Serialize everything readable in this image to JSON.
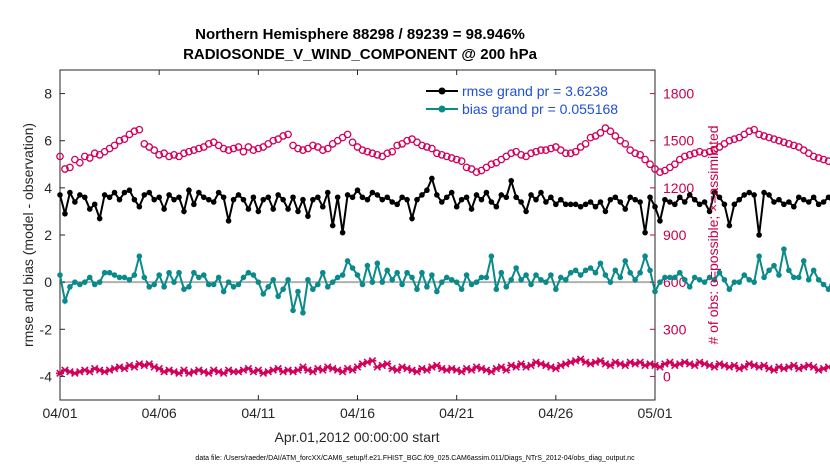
{
  "chart_data": {
    "type": "line",
    "title_line1": "Northern Hemisphere 88298 / 89239 = 98.946%",
    "title_line2": "RADIOSONDE_V_WIND_COMPONENT @ 200 hPa",
    "ylabel_left": "rmse and bias (model - observation)",
    "ylabel_right": "# of obs: o=possible; ×=assimilated",
    "xlabel": "Apr.01,2012 00:00:00 start",
    "footer": "data file: /Users/raeder/DAI/ATM_forcXX/CAM6_setup/f.e21.FHIST_BGC.f09_025.CAM6assim.011/Diags_NTrS_2012-04/obs_diag_output.nc",
    "ylim_left": [
      -5,
      9
    ],
    "ylim_right": [
      -150,
      1950
    ],
    "xlim": [
      0,
      30
    ],
    "yticks_left": [
      -4,
      -2,
      0,
      2,
      4,
      6,
      8
    ],
    "ytick_labels_left": [
      "-4",
      "-2",
      "0",
      "2",
      "4",
      "6",
      "8"
    ],
    "yticks_right": [
      0,
      300,
      600,
      900,
      1200,
      1500,
      1800
    ],
    "ytick_labels_right": [
      "0",
      "300",
      "600",
      "900",
      "1200",
      "1500",
      "1800"
    ],
    "xticks": [
      0,
      5,
      10,
      15,
      20,
      25,
      30
    ],
    "xtick_labels": [
      "04/01",
      "04/06",
      "04/11",
      "04/16",
      "04/21",
      "04/26",
      "05/01"
    ],
    "legend": [
      {
        "name": "rmse grand pr = 3.6238",
        "color": "#000000"
      },
      {
        "name": "bias grand pr = 0.055168",
        "color": "#008080"
      }
    ],
    "colors": {
      "rmse": "#000000",
      "bias": "#0a8a8a",
      "obs": "#d2005a",
      "zero_line": "#b0b0b0"
    },
    "x_step_days": 0.25,
    "series": [
      {
        "name": "rmse",
        "axis": "left",
        "values": [
          3.7,
          2.9,
          3.8,
          3.4,
          3.7,
          3.6,
          3.1,
          3.3,
          2.7,
          3.7,
          3.6,
          3.8,
          3.5,
          3.8,
          3.9,
          3.5,
          3.2,
          3.7,
          3.8,
          3.5,
          3.6,
          3.1,
          3.7,
          3.5,
          3.6,
          3.0,
          3.9,
          3.3,
          3.8,
          3.6,
          3.5,
          3.4,
          3.8,
          3.6,
          2.6,
          3.5,
          3.7,
          3.5,
          3.1,
          3.6,
          3.0,
          3.5,
          3.6,
          3.1,
          3.7,
          3.5,
          3.1,
          3.6,
          3.0,
          3.5,
          2.8,
          3.5,
          3.6,
          3.2,
          3.8,
          2.4,
          3.6,
          2.1,
          3.7,
          3.6,
          3.9,
          3.6,
          3.5,
          3.8,
          3.7,
          3.5,
          3.6,
          3.4,
          3.3,
          3.6,
          3.5,
          2.7,
          3.5,
          3.7,
          3.9,
          4.4,
          3.7,
          3.4,
          3.6,
          3.8,
          3.2,
          3.5,
          3.6,
          3.1,
          3.7,
          3.5,
          3.8,
          3.4,
          3.2,
          3.7,
          3.6,
          4.3,
          3.6,
          3.4,
          3.0,
          3.7,
          3.5,
          3.8,
          3.4,
          3.6,
          3.3,
          3.5,
          3.3,
          3.3,
          3.3,
          3.2,
          3.3,
          3.4,
          3.2,
          3.4,
          3.0,
          3.5,
          3.6,
          3.4,
          3.1,
          3.6,
          3.5,
          3.4,
          2.1,
          3.6,
          3.2,
          2.6,
          3.5,
          3.4,
          3.3,
          3.6,
          3.4,
          3.7,
          3.5,
          3.3,
          3.4,
          3.0,
          3.8,
          3.6,
          3.3,
          2.4,
          3.3,
          3.5,
          3.7,
          3.8,
          3.7,
          2.0,
          3.8,
          3.7,
          3.4,
          3.5,
          3.3,
          3.4,
          3.2,
          3.6,
          3.5,
          3.4,
          3.6,
          3.3,
          3.4,
          3.6,
          3.3,
          3.8,
          3.5,
          3.6,
          5.1,
          3.6,
          3.7,
          3.6,
          3.9,
          3.8,
          3.9,
          4.0,
          3.9,
          3.8,
          3.5,
          3.7,
          3.9,
          3.6,
          3.9,
          4.0,
          4.1,
          3.9,
          4.0,
          3.9,
          4.0,
          3.8,
          2.9,
          4.0,
          3.7
        ]
      },
      {
        "name": "bias",
        "axis": "left",
        "values": [
          0.3,
          -0.8,
          -0.2,
          0.0,
          -0.1,
          0.0,
          0.2,
          -0.1,
          0.0,
          0.4,
          0.4,
          0.3,
          0.2,
          0.2,
          0.1,
          0.3,
          1.1,
          0.2,
          -0.2,
          -0.1,
          0.3,
          -0.2,
          0.4,
          0.0,
          0.4,
          -0.3,
          -0.2,
          0.4,
          0.2,
          0.3,
          -0.1,
          -0.1,
          0.2,
          -0.4,
          0.0,
          -0.2,
          -0.1,
          0.2,
          0.4,
          0.3,
          0.0,
          -0.5,
          -0.2,
          0.1,
          -0.6,
          -0.3,
          0.1,
          -1.2,
          -0.4,
          -1.3,
          0.1,
          -0.3,
          -0.1,
          0.4,
          -0.2,
          0.0,
          0.2,
          0.3,
          0.9,
          0.6,
          0.3,
          -0.1,
          0.7,
          0.0,
          0.8,
          0.0,
          0.5,
          0.1,
          0.4,
          -0.1,
          0.4,
          0.2,
          -0.3,
          0.4,
          -0.2,
          0.3,
          -0.4,
          0.0,
          0.2,
          0.1,
          0.0,
          -0.3,
          0.3,
          -0.1,
          0.0,
          0.2,
          0.2,
          1.1,
          -0.3,
          0.4,
          -0.2,
          0.1,
          0.6,
          0.1,
          0.3,
          -0.1,
          0.3,
          0.1,
          0.0,
          0.3,
          -0.3,
          0.2,
          0.1,
          0.4,
          0.5,
          0.3,
          0.5,
          0.6,
          0.4,
          0.8,
          0.3,
          0.0,
          0.5,
          0.2,
          0.9,
          0.4,
          0.1,
          0.4,
          1.1,
          0.5,
          -0.4,
          0.0,
          0.2,
          0.2,
          0.2,
          0.4,
          0.1,
          -0.2,
          0.2,
          0.1,
          0.0,
          0.2,
          0.1,
          0.4,
          0.1,
          -0.3,
          0.0,
          0.0,
          0.3,
          0.1,
          0.0,
          1.1,
          0.2,
          0.5,
          0.7,
          0.3,
          1.4,
          0.5,
          0.2,
          0.2,
          0.9,
          0.1,
          0.5,
          0.1,
          -0.1,
          -0.3,
          0.2,
          0.6,
          0.1,
          0.2,
          -0.1,
          0.5,
          0.1,
          -0.8,
          0.1,
          0.3,
          0.2,
          0.5,
          0.4,
          -0.1,
          0.2,
          0.2,
          0.2,
          0.0,
          0.3,
          0.2,
          -0.7,
          0.1,
          0.3,
          0.0,
          0.4,
          0.4,
          0.1,
          0.6,
          0.1,
          -0.1,
          0.6,
          0.1,
          0.3
        ]
      },
      {
        "name": "obs possible",
        "axis": "right",
        "values": [
          1400,
          1320,
          1330,
          1380,
          1360,
          1400,
          1390,
          1420,
          1410,
          1430,
          1450,
          1470,
          1500,
          1510,
          1540,
          1560,
          1570,
          1480,
          1460,
          1440,
          1410,
          1420,
          1400,
          1410,
          1400,
          1420,
          1430,
          1440,
          1450,
          1460,
          1480,
          1490,
          1470,
          1450,
          1440,
          1450,
          1460,
          1430,
          1460,
          1440,
          1450,
          1460,
          1480,
          1500,
          1510,
          1530,
          1540,
          1470,
          1450,
          1440,
          1450,
          1470,
          1460,
          1440,
          1450,
          1480,
          1500,
          1520,
          1540,
          1490,
          1460,
          1440,
          1430,
          1420,
          1410,
          1400,
          1420,
          1430,
          1470,
          1480,
          1500,
          1510,
          1490,
          1470,
          1460,
          1450,
          1420,
          1410,
          1400,
          1390,
          1380,
          1370,
          1330,
          1320,
          1300,
          1310,
          1330,
          1350,
          1360,
          1380,
          1400,
          1420,
          1430,
          1410,
          1400,
          1420,
          1430,
          1440,
          1440,
          1450,
          1460,
          1440,
          1420,
          1420,
          1430,
          1460,
          1480,
          1520,
          1530,
          1550,
          1580,
          1560,
          1530,
          1500,
          1480,
          1440,
          1420,
          1410,
          1380,
          1350,
          1320,
          1300,
          1310,
          1330,
          1350,
          1380,
          1400,
          1410,
          1420,
          1430,
          1420,
          1430,
          1440,
          1460,
          1480,
          1500,
          1510,
          1520,
          1540,
          1560,
          1570,
          1540,
          1530,
          1520,
          1510,
          1500,
          1490,
          1480,
          1470,
          1460,
          1440,
          1420,
          1400,
          1390,
          1380,
          1370,
          1350,
          1320,
          1300,
          1330,
          1350,
          1380,
          1400,
          1410,
          1420,
          1430,
          1440,
          1460,
          1480,
          1500,
          1520,
          1540,
          1520,
          1500,
          1480,
          1460,
          1440,
          1420,
          1400,
          1420,
          1450,
          1460,
          1440,
          1400,
          1350,
          1300
        ]
      },
      {
        "name": "obs assimilated",
        "axis": "right",
        "values": [
          20,
          40,
          30,
          20,
          30,
          40,
          30,
          50,
          40,
          30,
          40,
          50,
          60,
          50,
          70,
          60,
          80,
          70,
          80,
          60,
          50,
          30,
          40,
          30,
          20,
          40,
          20,
          30,
          40,
          30,
          20,
          40,
          30,
          20,
          40,
          30,
          30,
          40,
          50,
          30,
          40,
          20,
          30,
          40,
          50,
          30,
          40,
          30,
          40,
          60,
          40,
          30,
          50,
          40,
          60,
          50,
          40,
          30,
          50,
          40,
          60,
          80,
          90,
          100,
          60,
          70,
          80,
          50,
          40,
          60,
          50,
          40,
          30,
          50,
          40,
          60,
          70,
          50,
          40,
          50,
          40,
          30,
          50,
          40,
          60,
          50,
          40,
          30,
          50,
          60,
          40,
          70,
          60,
          80,
          60,
          70,
          90,
          80,
          70,
          60,
          50,
          70,
          80,
          90,
          100,
          110,
          90,
          80,
          90,
          100,
          80,
          70,
          90,
          80,
          70,
          90,
          80,
          90,
          70,
          80,
          70,
          60,
          80,
          90,
          70,
          80,
          90,
          80,
          70,
          90,
          80,
          70,
          60,
          80,
          70,
          60,
          70,
          50,
          60,
          80,
          70,
          60,
          70,
          50,
          40,
          60,
          50,
          60,
          70,
          50,
          60,
          70,
          60,
          40,
          50,
          60,
          50,
          40,
          30,
          50,
          40,
          60,
          50,
          60,
          40,
          50,
          40,
          30,
          40,
          50,
          40,
          30,
          40,
          30,
          40,
          30,
          40,
          30,
          20,
          30,
          20,
          30,
          40,
          30,
          40,
          30,
          40,
          20,
          30,
          50,
          20,
          -20
        ]
      }
    ]
  }
}
